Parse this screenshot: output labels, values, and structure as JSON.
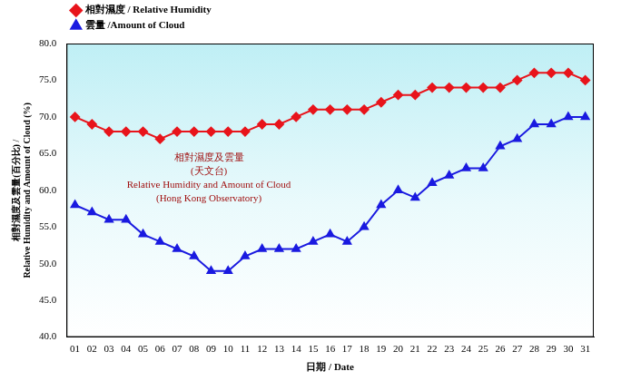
{
  "chart_data": {
    "type": "line",
    "categories": [
      "01",
      "02",
      "03",
      "04",
      "05",
      "06",
      "07",
      "08",
      "09",
      "10",
      "11",
      "12",
      "13",
      "14",
      "15",
      "16",
      "17",
      "18",
      "19",
      "20",
      "21",
      "22",
      "23",
      "24",
      "25",
      "26",
      "27",
      "28",
      "29",
      "30",
      "31"
    ],
    "series": [
      {
        "name": "相對濕度 / Relative Humidity",
        "color": "#e8141b",
        "marker": "diamond",
        "line_style": "solid",
        "values": [
          70,
          69,
          68,
          68,
          68,
          67,
          68,
          68,
          68,
          68,
          68,
          69,
          69,
          70,
          71,
          71,
          71,
          71,
          72,
          73,
          73,
          74,
          74,
          74,
          74,
          74,
          75,
          76,
          76,
          76,
          75
        ]
      },
      {
        "name": "雲量 /Amount of Cloud",
        "color": "#1a1ae0",
        "marker": "triangle",
        "line_style": "solid",
        "values": [
          58,
          57,
          56,
          56,
          54,
          53,
          52,
          51,
          49,
          49,
          51,
          52,
          52,
          52,
          53,
          54,
          53,
          55,
          58,
          60,
          59,
          61,
          62,
          63,
          63,
          66,
          67,
          69,
          69,
          70,
          70
        ]
      }
    ],
    "x_label": "日期 / Date",
    "y_label": [
      "相對濕度及雲量(百分比) /",
      "Relative Humidity and Amount of Cloud (%)"
    ],
    "annotations": [
      "相對濕度及雲量",
      "(天文台)",
      "Relative Humidity and Amount of Cloud",
      "(Hong Kong Observatory)"
    ],
    "ylim": [
      40,
      80
    ],
    "yticks": [
      {
        "value": 40,
        "label": "40.0"
      },
      {
        "value": 45,
        "label": "45.0"
      },
      {
        "value": 50,
        "label": "50.0"
      },
      {
        "value": 55,
        "label": "55.0"
      },
      {
        "value": 60,
        "label": "60.0"
      },
      {
        "value": 65,
        "label": "65.0"
      },
      {
        "value": 70,
        "label": "70.0"
      },
      {
        "value": 75,
        "label": "75.0"
      },
      {
        "value": 80,
        "label": "80.0"
      }
    ],
    "grid": false,
    "legend": "top-left"
  }
}
